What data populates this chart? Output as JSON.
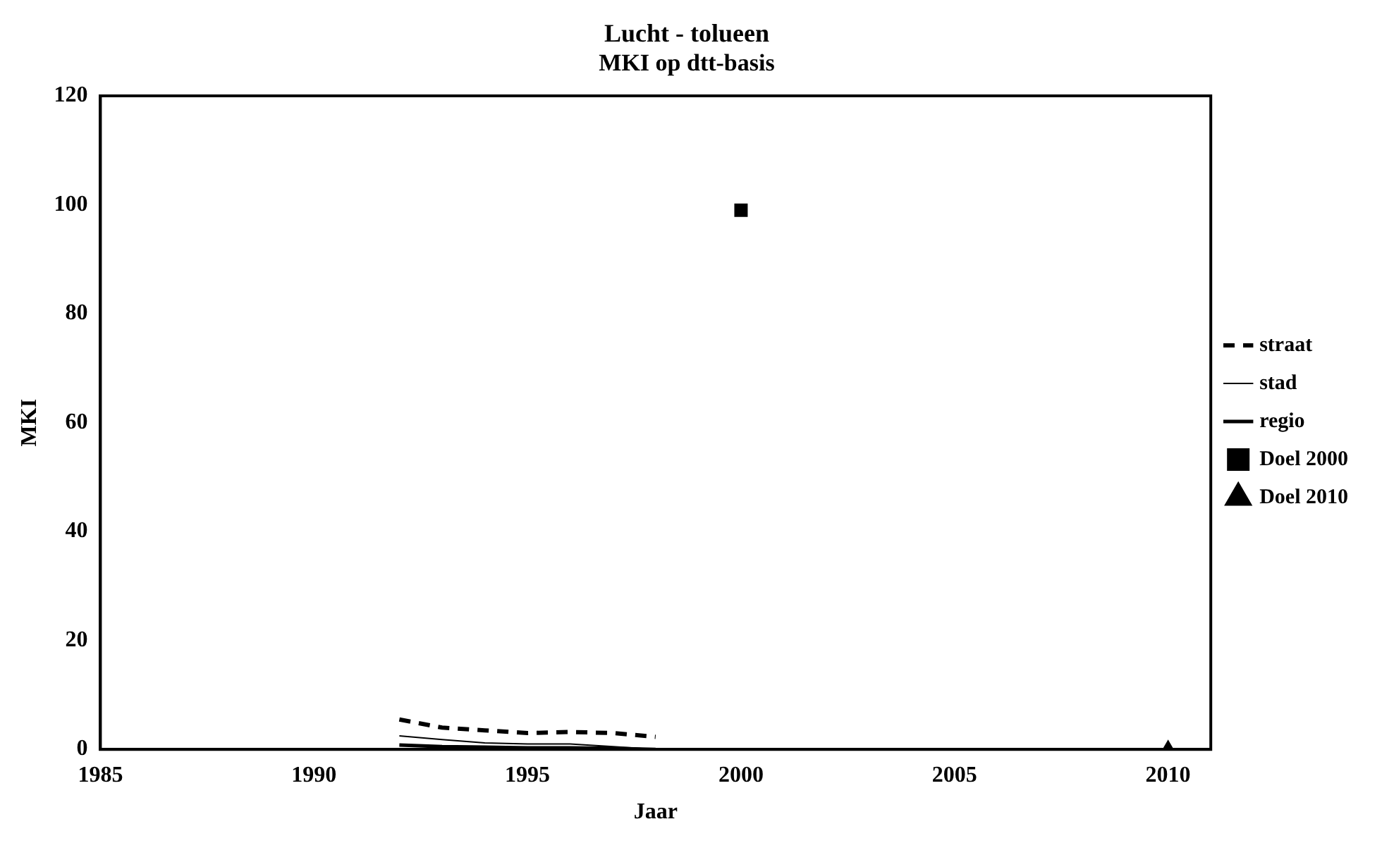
{
  "chart_data": {
    "type": "line",
    "title": "Lucht - tolueen",
    "subtitle": "MKI op dtt-basis",
    "xlabel": "Jaar",
    "ylabel": "MKI",
    "xlim": [
      1985,
      2011
    ],
    "xticks": [
      1985,
      1990,
      1995,
      2000,
      2005,
      2010
    ],
    "ylim": [
      0,
      120
    ],
    "yticks": [
      0,
      20,
      40,
      60,
      80,
      100,
      120
    ],
    "grid": false,
    "legend": "right",
    "series": [
      {
        "name": "straat",
        "color": "#000000",
        "line_style": "dashed",
        "marker": "none",
        "x": [
          1992,
          1993,
          1994,
          1995,
          1996,
          1997,
          1998
        ],
        "values": [
          5.5,
          4,
          3.5,
          3,
          3.2,
          3,
          2.3
        ]
      },
      {
        "name": "stad",
        "color": "#000000",
        "line_style": "solid",
        "marker": "none",
        "x": [
          1992,
          1993,
          1994,
          1995,
          1996,
          1997,
          1998
        ],
        "values": [
          2.5,
          1.8,
          1.2,
          1,
          1,
          0.5,
          0
        ]
      },
      {
        "name": "regio",
        "color": "#000000",
        "line_style": "solid",
        "marker": "none",
        "x": [
          1992,
          1993,
          1994,
          1995,
          1996,
          1997,
          1998
        ],
        "values": [
          0.8,
          0.5,
          0.4,
          0.3,
          0.3,
          0.2,
          0
        ]
      },
      {
        "name": "Doel 2000",
        "type": "scatter",
        "color": "#000000",
        "marker": "square",
        "x": [
          2000
        ],
        "values": [
          99
        ]
      },
      {
        "name": "Doel 2010",
        "type": "scatter",
        "color": "#000000",
        "marker": "triangle",
        "x": [
          2010
        ],
        "values": [
          0
        ]
      }
    ]
  }
}
